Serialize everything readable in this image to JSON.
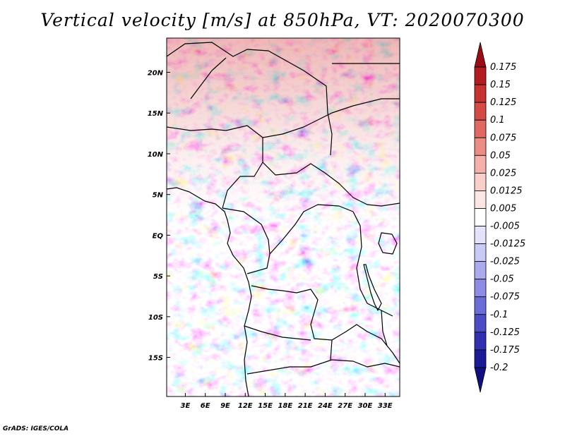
{
  "title": "Vertical velocity [m/s] at 850hPa, VT: 2020070300",
  "credit": "GrADS: IGES/COLA",
  "lat_labels": [
    "20N",
    "15N",
    "10N",
    "5N",
    "EQ",
    "5S",
    "10S",
    "15S"
  ],
  "lat_values": [
    20,
    15,
    10,
    5,
    0,
    -5,
    -10,
    -15
  ],
  "lon_labels": [
    "3E",
    "6E",
    "9E",
    "12E",
    "15E",
    "18E",
    "21E",
    "24E",
    "27E",
    "30E",
    "33E"
  ],
  "lon_values": [
    3,
    6,
    9,
    12,
    15,
    18,
    21,
    24,
    27,
    30,
    33
  ],
  "lat_range": [
    -19.8,
    24.2
  ],
  "lon_range": [
    0.2,
    35.2
  ],
  "colorbar": {
    "labels": [
      "0.175",
      "0.15",
      "0.125",
      "0.1",
      "0.075",
      "0.05",
      "0.025",
      "0.0125",
      "0.005",
      "-0.005",
      "-0.0125",
      "-0.025",
      "-0.05",
      "-0.075",
      "-0.1",
      "-0.125",
      "-0.175",
      "-0.2"
    ],
    "colors": [
      "#9a0d14",
      "#b21c20",
      "#c63330",
      "#d44a45",
      "#e06a62",
      "#ec8d85",
      "#f4b0a9",
      "#f9cfca",
      "#fce6e3",
      "#ffffff",
      "#e3e3fb",
      "#cacaf7",
      "#ababf0",
      "#8c8ce6",
      "#6b6bd9",
      "#4c4cc6",
      "#3030b0",
      "#1b1b98",
      "#101080"
    ]
  }
}
